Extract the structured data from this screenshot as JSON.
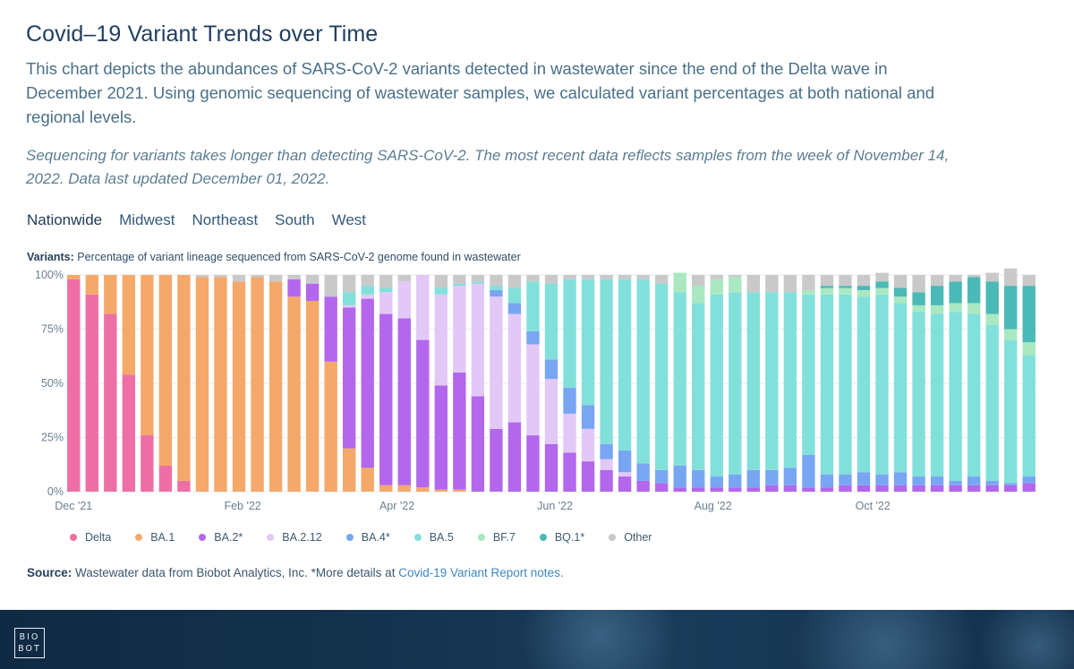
{
  "header": {
    "title": "Covid–19 Variant Trends over Time",
    "description": "This chart depicts the abundances of SARS-CoV-2 variants detected in wastewater since the end of the Delta wave in December 2021. Using genomic sequencing of wastewater samples, we calculated variant percentages at both national and regional levels.",
    "note": "Sequencing for variants takes longer than detecting SARS-CoV-2. The most recent data reflects samples from the week of November 14, 2022. Data last updated December 01, 2022."
  },
  "tabs": [
    {
      "label": "Nationwide",
      "active": true
    },
    {
      "label": "Midwest",
      "active": false
    },
    {
      "label": "Northeast",
      "active": false
    },
    {
      "label": "South",
      "active": false
    },
    {
      "label": "West",
      "active": false
    }
  ],
  "chart_caption": {
    "bold": "Variants:",
    "text": "Percentage of variant lineage sequenced from SARS-CoV-2 genome found in wastewater"
  },
  "chart_data": {
    "type": "bar",
    "stacked": true,
    "ylim": [
      0,
      100
    ],
    "yticks": [
      "0%",
      "25%",
      "50%",
      "75%",
      "100%"
    ],
    "ytick_values": [
      0,
      25,
      50,
      75,
      100
    ],
    "xtick_labels": [
      {
        "label": "Dec '21",
        "at_bar": 0
      },
      {
        "label": "Feb '22",
        "at_bar": 9.2
      },
      {
        "label": "Apr '22",
        "at_bar": 17.6
      },
      {
        "label": "Jun '22",
        "at_bar": 26.2
      },
      {
        "label": "Aug '22",
        "at_bar": 34.8
      },
      {
        "label": "Oct '22",
        "at_bar": 43.5
      }
    ],
    "grid": true,
    "legend_position": "bottom",
    "series": [
      {
        "name": "Delta",
        "color": "#ee6fa5",
        "values": [
          98,
          91,
          82,
          54,
          26,
          12,
          5,
          0,
          0,
          0,
          0,
          0,
          0,
          0,
          0,
          0,
          0,
          0,
          0,
          0,
          0,
          0,
          0,
          0,
          0,
          0,
          0,
          0,
          0,
          0,
          0,
          0,
          0,
          0,
          0,
          0,
          0,
          0,
          0,
          0,
          0,
          0,
          0,
          0,
          0,
          0,
          0,
          0,
          0,
          0,
          0,
          0,
          0
        ]
      },
      {
        "name": "BA.1",
        "color": "#f4a86a",
        "values": [
          2,
          9,
          18,
          46,
          74,
          88,
          95,
          99,
          99,
          97,
          99,
          97,
          90,
          88,
          60,
          20,
          11,
          3,
          3,
          2,
          1,
          1,
          0,
          0,
          0,
          0,
          0,
          0,
          0,
          0,
          0,
          0,
          0,
          0,
          0,
          0,
          0,
          0,
          0,
          0,
          0,
          0,
          0,
          0,
          0,
          0,
          0,
          0,
          0,
          0,
          0,
          0,
          0
        ]
      },
      {
        "name": "BA.2*",
        "color": "#b267ec",
        "values": [
          0,
          0,
          0,
          0,
          0,
          0,
          0,
          0,
          0,
          0,
          0,
          0,
          8,
          8,
          30,
          65,
          78,
          79,
          77,
          68,
          48,
          54,
          44,
          29,
          32,
          26,
          22,
          18,
          14,
          10,
          7,
          5,
          4,
          2,
          2,
          2,
          2,
          2,
          3,
          3,
          2,
          2,
          3,
          3,
          3,
          3,
          3,
          3,
          3,
          3,
          3,
          3,
          4
        ]
      },
      {
        "name": "BA.2.12",
        "color": "#e2c8f6",
        "values": [
          0,
          0,
          0,
          0,
          0,
          0,
          0,
          0,
          0,
          0,
          0,
          0,
          0,
          0,
          0,
          1,
          2,
          10,
          17,
          30,
          42,
          40,
          52,
          61,
          50,
          42,
          30,
          18,
          15,
          5,
          2,
          0,
          0,
          0,
          0,
          0,
          0,
          0,
          0,
          0,
          0,
          0,
          0,
          0,
          0,
          0,
          0,
          0,
          0,
          0,
          0,
          0,
          0
        ]
      },
      {
        "name": "BA.4*",
        "color": "#79a6f2",
        "values": [
          0,
          0,
          0,
          0,
          0,
          0,
          0,
          0,
          0,
          0,
          0,
          0,
          0,
          0,
          0,
          0,
          0,
          0,
          0,
          0,
          0,
          0,
          0,
          3,
          5,
          6,
          9,
          12,
          11,
          7,
          10,
          8,
          6,
          10,
          8,
          5,
          6,
          8,
          7,
          8,
          15,
          6,
          5,
          6,
          5,
          6,
          4,
          4,
          2,
          4,
          2,
          1,
          3
        ]
      },
      {
        "name": "BA.5",
        "color": "#82e0db",
        "values": [
          0,
          0,
          0,
          0,
          0,
          0,
          0,
          0,
          0,
          0,
          0,
          0,
          0,
          0,
          0,
          6,
          4,
          2,
          0,
          0,
          3,
          1,
          1,
          2,
          7,
          23,
          35,
          50,
          58,
          76,
          79,
          85,
          86,
          80,
          77,
          84,
          84,
          82,
          82,
          81,
          74,
          83,
          83,
          81,
          83,
          78,
          76,
          75,
          78,
          75,
          72,
          66,
          56
        ]
      },
      {
        "name": "BF.7",
        "color": "#a9e8c1",
        "values": [
          0,
          0,
          0,
          0,
          0,
          0,
          0,
          0,
          0,
          0,
          0,
          0,
          0,
          0,
          0,
          0,
          0,
          0,
          0,
          0,
          0,
          0,
          0,
          0,
          0,
          0,
          0,
          0,
          0,
          0,
          0,
          0,
          0,
          9,
          8,
          7,
          7,
          0,
          0,
          0,
          2,
          3,
          3,
          3,
          3,
          3,
          3,
          4,
          4,
          5,
          5,
          5,
          6
        ]
      },
      {
        "name": "BQ.1*",
        "color": "#4bb9b5",
        "values": [
          0,
          0,
          0,
          0,
          0,
          0,
          0,
          0,
          0,
          0,
          0,
          0,
          0,
          0,
          0,
          0,
          0,
          0,
          0,
          0,
          0,
          0,
          0,
          0,
          0,
          0,
          0,
          0,
          0,
          0,
          0,
          0,
          0,
          0,
          0,
          0,
          0,
          0,
          0,
          0,
          0,
          1,
          1,
          2,
          3,
          4,
          6,
          9,
          10,
          12,
          15,
          20,
          26
        ]
      },
      {
        "name": "Other",
        "color": "#c9c9c9",
        "values": [
          0,
          0,
          0,
          0,
          0,
          0,
          0,
          1,
          1,
          3,
          1,
          3,
          2,
          4,
          10,
          8,
          5,
          6,
          3,
          0,
          6,
          4,
          3,
          5,
          6,
          3,
          4,
          2,
          2,
          2,
          2,
          2,
          4,
          0,
          5,
          2,
          1,
          8,
          8,
          8,
          7,
          5,
          5,
          5,
          4,
          6,
          8,
          5,
          3,
          1,
          4,
          8,
          5
        ]
      }
    ]
  },
  "source": {
    "bold": "Source:",
    "text": "Wastewater data from Biobot Analytics, Inc. *More details at",
    "link": "Covid-19 Variant Report notes."
  },
  "footer": {
    "logo_line1": "BIO",
    "logo_line2": "BOT"
  }
}
